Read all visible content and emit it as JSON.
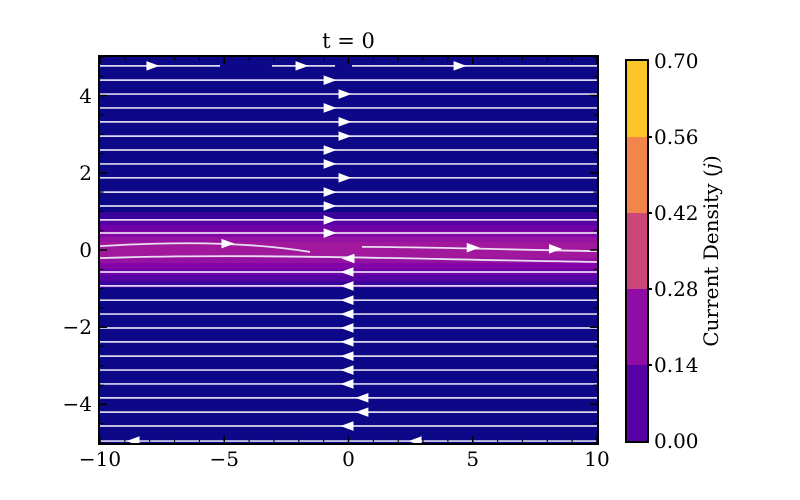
{
  "figure": {
    "title": "t = 0",
    "background_color": "#ffffff"
  },
  "axes": {
    "xlim": [
      -10,
      10
    ],
    "ylim": [
      -5,
      5
    ],
    "x_ticks": [
      {
        "label": "−10",
        "value": -10
      },
      {
        "label": "−5",
        "value": -5
      },
      {
        "label": "0",
        "value": 0
      },
      {
        "label": "5",
        "value": 5
      },
      {
        "label": "10",
        "value": 10
      }
    ],
    "y_ticks": [
      {
        "label": "4",
        "value": 4
      },
      {
        "label": "2",
        "value": 2
      },
      {
        "label": "0",
        "value": 0
      },
      {
        "label": "−2",
        "value": -2
      },
      {
        "label": "−4",
        "value": -4
      }
    ],
    "x_minor_step": 1,
    "y_minor_step": 0.5
  },
  "colorbar": {
    "label_prefix": "Current Density (",
    "label_j": "j",
    "label_suffix": ")",
    "value_range": [
      0.0,
      0.7
    ],
    "ticks": [
      {
        "label": "0.70",
        "value": 0.7
      },
      {
        "label": "0.56",
        "value": 0.56
      },
      {
        "label": "0.42",
        "value": 0.42
      },
      {
        "label": "0.28",
        "value": 0.28
      },
      {
        "label": "0.14",
        "value": 0.14
      },
      {
        "label": "0.00",
        "value": 0.0
      }
    ],
    "bands": [
      {
        "range": [
          0.56,
          0.7
        ],
        "color": "#fdc527"
      },
      {
        "range": [
          0.42,
          0.56
        ],
        "color": "#f1854b"
      },
      {
        "range": [
          0.28,
          0.42
        ],
        "color": "#cc4778"
      },
      {
        "range": [
          0.14,
          0.28
        ],
        "color": "#8f0da4"
      },
      {
        "range": [
          0.0,
          0.14
        ],
        "color": "#5601a4"
      }
    ]
  },
  "chart_data": {
    "type": "heatmap",
    "title": "t = 0",
    "xlabel": "",
    "ylabel": "",
    "xlim": [
      -10,
      10
    ],
    "ylim": [
      -5,
      5
    ],
    "grid": false,
    "colormap": "plasma (discrete contour levels)",
    "value_label": "Current Density (j)",
    "value_range": [
      0.0,
      0.7
    ],
    "contour_levels": [
      0.0,
      0.14,
      0.28,
      0.42,
      0.56,
      0.7
    ],
    "field_description": "Harris current-sheet configuration at t = 0: current density is concentrated in a thin layer at y = 0 and decays toward 0 away from it; overlaid magnetic-field streamlines are nearly horizontal, flowing in +x for y > 0 and in -x for y < 0, reversing across the neutral line y = 0.",
    "current_profile": {
      "y": [
        -5,
        -2,
        -1,
        -0.8,
        -0.65,
        -0.49,
        -0.34,
        -0.21,
        0,
        0.21,
        0.34,
        0.49,
        0.65,
        0.8,
        1,
        2,
        5
      ],
      "j": [
        0.0,
        0.005,
        0.05,
        0.08,
        0.11,
        0.14,
        0.17,
        0.21,
        0.25,
        0.21,
        0.17,
        0.14,
        0.11,
        0.08,
        0.05,
        0.005,
        0.0
      ]
    },
    "shading_bands_top_to_bottom": [
      {
        "from_y": 5.0,
        "to_y": 0.98,
        "color": "#0d0887"
      },
      {
        "from_y": 0.98,
        "to_y": 0.8,
        "color": "#3a049a"
      },
      {
        "from_y": 0.8,
        "to_y": 0.65,
        "color": "#5601a4"
      },
      {
        "from_y": 0.65,
        "to_y": 0.49,
        "color": "#6f00a8"
      },
      {
        "from_y": 0.49,
        "to_y": 0.34,
        "color": "#8305a7"
      },
      {
        "from_y": 0.34,
        "to_y": 0.21,
        "color": "#9511a1"
      },
      {
        "from_y": 0.21,
        "to_y": -0.21,
        "color": "#a1189c"
      },
      {
        "from_y": -0.21,
        "to_y": -0.34,
        "color": "#9511a1"
      },
      {
        "from_y": -0.34,
        "to_y": -0.49,
        "color": "#8305a7"
      },
      {
        "from_y": -0.49,
        "to_y": -0.65,
        "color": "#6f00a8"
      },
      {
        "from_y": -0.65,
        "to_y": -0.8,
        "color": "#5601a4"
      },
      {
        "from_y": -0.8,
        "to_y": -0.98,
        "color": "#3a049a"
      },
      {
        "from_y": -0.98,
        "to_y": -5.0,
        "color": "#0d0887"
      }
    ],
    "streamlines": {
      "color": "#ece9f7",
      "rows": [
        {
          "y": 4.77,
          "dir": "right",
          "segments": [
            [
              -10,
              -5.17
            ],
            [
              -3.08,
              -0.54
            ],
            [
              0.14,
              10
            ]
          ],
          "arrows": [
            -7.87,
            -1.87,
            4.49
          ]
        },
        {
          "y": 4.4,
          "dir": "right",
          "arrows": [
            -0.74
          ]
        },
        {
          "y": 4.04,
          "dir": "right",
          "arrows": [
            -0.14
          ]
        },
        {
          "y": 3.68,
          "dir": "right",
          "arrows": [
            -0.74
          ]
        },
        {
          "y": 3.32,
          "dir": "right",
          "arrows": [
            -0.14
          ]
        },
        {
          "y": 2.95,
          "dir": "right",
          "arrows": [
            -0.14
          ]
        },
        {
          "y": 2.59,
          "dir": "right",
          "arrows": [
            -0.74
          ]
        },
        {
          "y": 2.23,
          "dir": "right",
          "arrows": [
            -0.74
          ]
        },
        {
          "y": 1.87,
          "dir": "right",
          "arrows": [
            -0.14
          ]
        },
        {
          "y": 1.5,
          "dir": "right",
          "arrows": [
            -0.74
          ]
        },
        {
          "y": 1.14,
          "dir": "right",
          "arrows": [
            -0.74
          ]
        },
        {
          "y": 0.78,
          "dir": "right",
          "arrows": [
            -0.74
          ]
        },
        {
          "y": 0.44,
          "dir": "right",
          "arrows": [
            -0.74
          ]
        },
        {
          "y": -0.57,
          "dir": "left",
          "arrows": [
            -0.06
          ]
        },
        {
          "y": -0.93,
          "dir": "left",
          "arrows": [
            -0.06
          ]
        },
        {
          "y": -1.3,
          "dir": "left",
          "arrows": [
            -0.06
          ]
        },
        {
          "y": -1.66,
          "dir": "left",
          "arrows": [
            -0.06
          ]
        },
        {
          "y": -2.02,
          "dir": "left",
          "arrows": [
            -0.06
          ]
        },
        {
          "y": -2.38,
          "dir": "left",
          "arrows": [
            -0.06
          ]
        },
        {
          "y": -2.75,
          "dir": "left",
          "arrows": [
            -0.06
          ]
        },
        {
          "y": -3.11,
          "dir": "left",
          "arrows": [
            -0.06
          ]
        },
        {
          "y": -3.47,
          "dir": "left",
          "arrows": [
            -0.06
          ]
        },
        {
          "y": -3.83,
          "dir": "left",
          "arrows": [
            0.54
          ]
        },
        {
          "y": -4.2,
          "dir": "left",
          "arrows": [
            0.54
          ]
        },
        {
          "y": -4.56,
          "dir": "left",
          "arrows": [
            -0.06
          ]
        },
        {
          "y": -4.95,
          "dir": "left",
          "arrows": [
            -8.67,
            2.68
          ]
        }
      ],
      "center_curves": [
        {
          "path": [
            [
              -10,
              0.1
            ],
            [
              -6.8,
              0.23
            ],
            [
              -4.0,
              0.21
            ],
            [
              -1.55,
              -0.05
            ]
          ],
          "arrows": [
            {
              "x": -4.85,
              "y": 0.165,
              "dir": "right"
            }
          ]
        },
        {
          "path": [
            [
              0.54,
              0.08
            ],
            [
              3.3,
              0.08
            ],
            [
              6.9,
              0.0
            ],
            [
              10,
              -0.03
            ]
          ],
          "arrows": [
            {
              "x": 5.02,
              "y": 0.06,
              "dir": "right"
            },
            {
              "x": 8.33,
              "y": 0.03,
              "dir": "right"
            }
          ]
        },
        {
          "path": [
            [
              -10,
              -0.21
            ],
            [
              -4.0,
              -0.08
            ],
            [
              2.0,
              -0.23
            ],
            [
              10,
              -0.31
            ]
          ],
          "arrows": [
            {
              "x": -0.02,
              "y": -0.22,
              "dir": "left"
            }
          ]
        }
      ]
    }
  }
}
